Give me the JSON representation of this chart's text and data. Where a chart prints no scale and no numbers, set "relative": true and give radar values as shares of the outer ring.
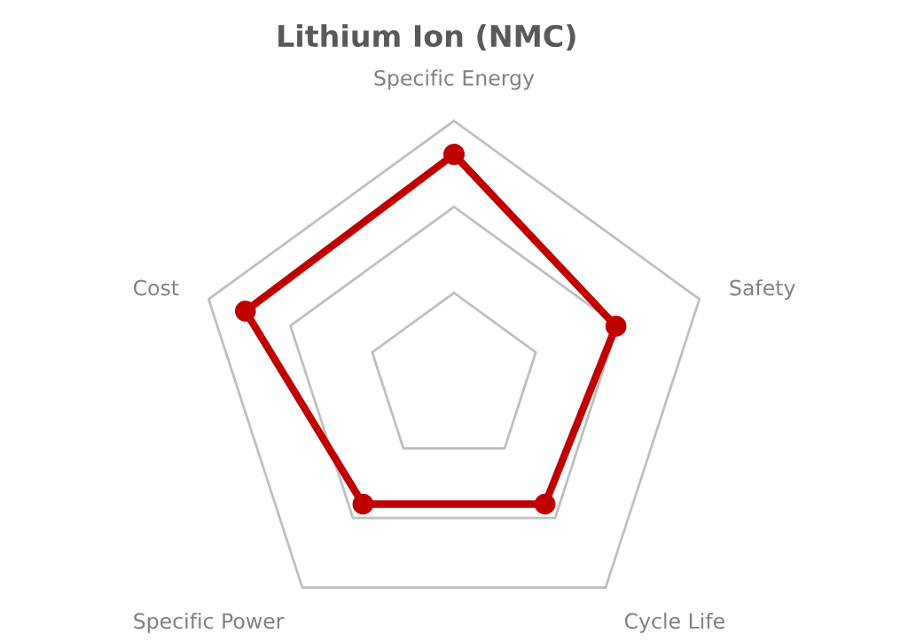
{
  "chart_data": {
    "type": "radar",
    "title": "Lithium Ion (NMC)",
    "categories": [
      "Specific Energy",
      "Safety",
      "Cycle Life",
      "Specific Power",
      "Cost"
    ],
    "relative": true,
    "grid": true,
    "marker": "circle",
    "line_style": "solid",
    "series": [
      {
        "color": "#c00000",
        "values": [
          0.87,
          0.66,
          0.6,
          0.6,
          0.85
        ]
      }
    ]
  }
}
